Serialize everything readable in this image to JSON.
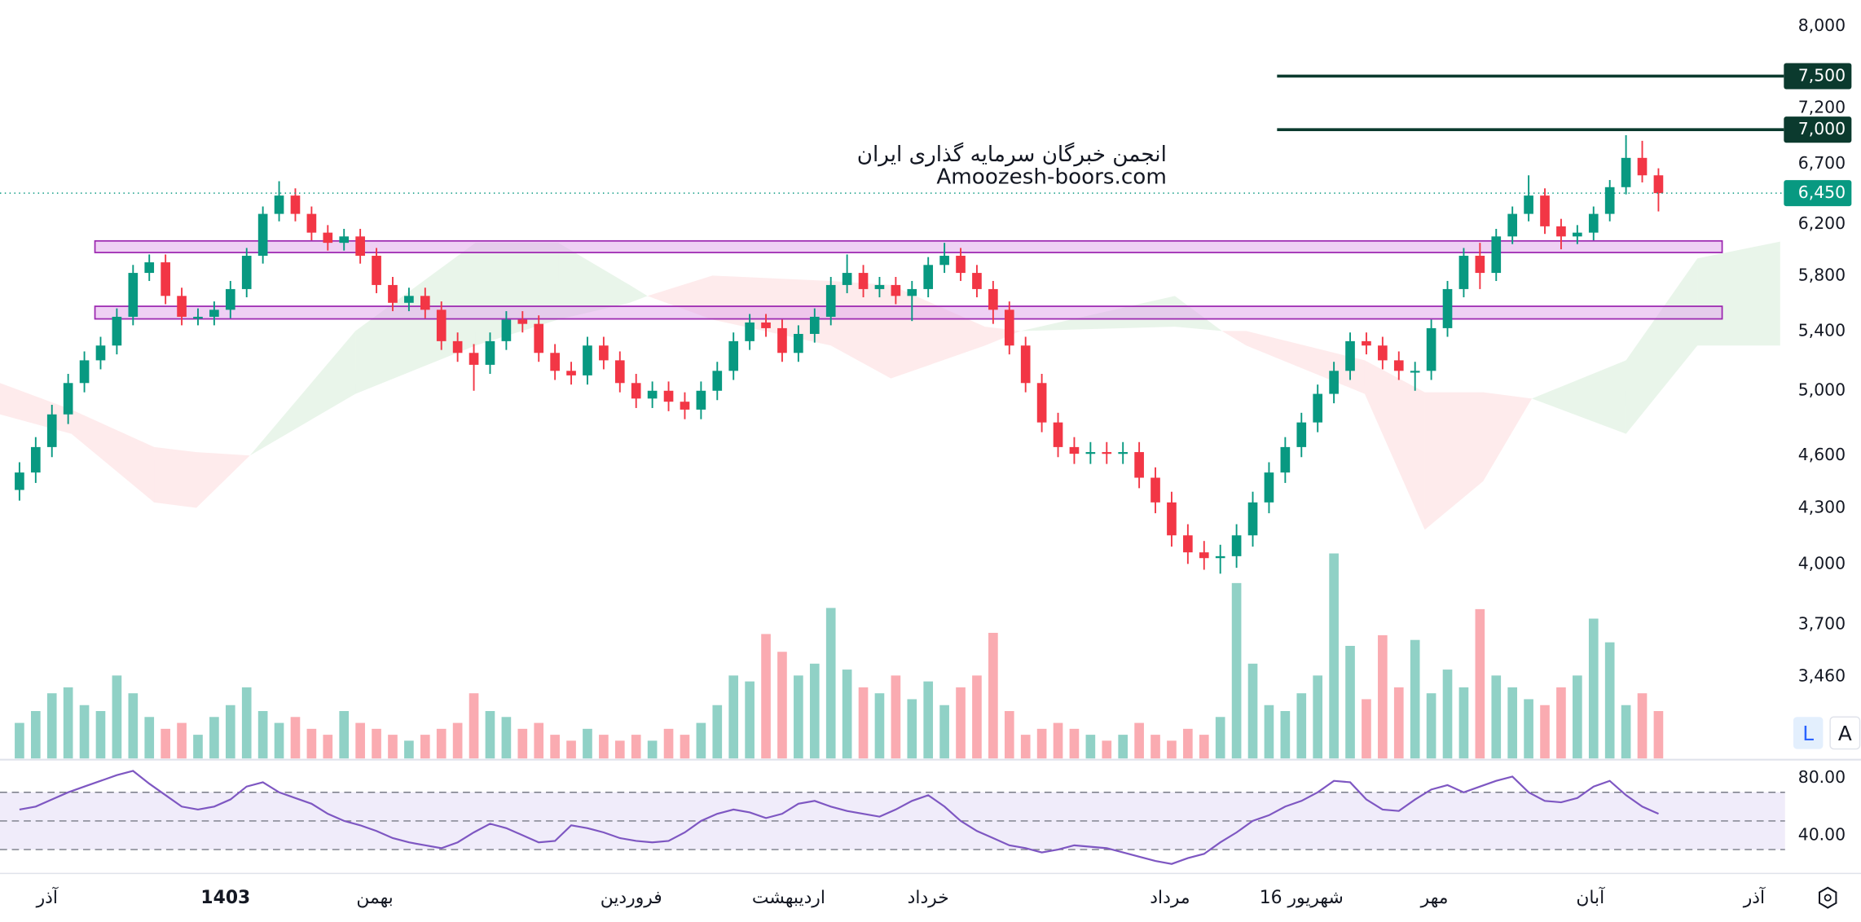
{
  "chart_data": {
    "type": "candlestick",
    "watermark": [
      "انجمن خبرگان سرمایه گذاری ایران",
      "Amoozesh-boors.com"
    ],
    "log_scale": true,
    "ylim": [
      3113,
      8273
    ],
    "yticks": [
      {
        "value": 8000,
        "label": "8,000"
      },
      {
        "value": 7200,
        "label": "7,200"
      },
      {
        "value": 6700,
        "label": "6,700"
      },
      {
        "value": 6200,
        "label": "6,200"
      },
      {
        "value": 5800,
        "label": "5,800"
      },
      {
        "value": 5400,
        "label": "5,400"
      },
      {
        "value": 5000,
        "label": "5,000"
      },
      {
        "value": 4600,
        "label": "4,600"
      },
      {
        "value": 4300,
        "label": "4,300"
      },
      {
        "value": 4000,
        "label": "4,000"
      },
      {
        "value": 3700,
        "label": "3,700"
      },
      {
        "value": 3460,
        "label": "3,460"
      }
    ],
    "xlim": [
      -1.2,
      108.8
    ],
    "xticks": [
      {
        "value": 1.7,
        "label": "آذر"
      },
      {
        "value": 12.7,
        "label": "1403",
        "bold": true
      },
      {
        "value": 21.9,
        "label": "بهمن"
      },
      {
        "value": 37.7,
        "label": "فروردین"
      },
      {
        "value": 47.4,
        "label": "اردیبهشت"
      },
      {
        "value": 56.0,
        "label": "خرداد"
      },
      {
        "value": 70.9,
        "label": "مرداد"
      },
      {
        "value": 79.0,
        "label": "16 شهریور"
      },
      {
        "value": 87.2,
        "label": "مهر"
      },
      {
        "value": 96.8,
        "label": "آبان"
      },
      {
        "value": 106.9,
        "label": "آذر"
      }
    ],
    "up_color": "#089981",
    "down_color": "#f23645",
    "open": [
      4400,
      4500,
      4650,
      4850,
      5050,
      5200,
      5300,
      5500,
      5820,
      5900,
      5650,
      5500,
      5500,
      5550,
      5700,
      5950,
      6280,
      6430,
      6280,
      6130,
      6050,
      6100,
      5950,
      5730,
      5600,
      5650,
      5550,
      5330,
      5250,
      5170,
      5330,
      5480,
      5450,
      5250,
      5130,
      5100,
      5300,
      5200,
      5050,
      4950,
      5000,
      4930,
      4880,
      5000,
      5130,
      5330,
      5460,
      5420,
      5250,
      5380,
      5500,
      5730,
      5820,
      5700,
      5730,
      5650,
      5700,
      5880,
      5950,
      5820,
      5700,
      5550,
      5300,
      5050,
      4800,
      4650,
      4610,
      4620,
      4610,
      4620,
      4470,
      4330,
      4150,
      4060,
      4030,
      4040,
      4150,
      4330,
      4500,
      4650,
      4800,
      4980,
      5130,
      5330,
      5300,
      5200,
      5130,
      5130,
      5420,
      5700,
      5950,
      5820,
      6100,
      6280,
      6430,
      6180,
      6100,
      6130,
      6280,
      6500,
      6750,
      6600
    ],
    "high": [
      4560,
      4710,
      4910,
      5110,
      5260,
      5360,
      5560,
      5880,
      5960,
      5960,
      5710,
      5560,
      5610,
      5760,
      6010,
      6340,
      6550,
      6490,
      6340,
      6190,
      6160,
      6160,
      6010,
      5790,
      5710,
      5710,
      5610,
      5390,
      5310,
      5390,
      5540,
      5540,
      5510,
      5310,
      5190,
      5360,
      5360,
      5260,
      5110,
      5060,
      5060,
      4990,
      5060,
      5190,
      5390,
      5520,
      5520,
      5480,
      5440,
      5560,
      5790,
      5960,
      5880,
      5790,
      5790,
      5760,
      5940,
      6050,
      6010,
      5880,
      5760,
      5610,
      5360,
      5110,
      4860,
      4710,
      4680,
      4680,
      4680,
      4680,
      4530,
      4390,
      4210,
      4120,
      4100,
      4210,
      4390,
      4560,
      4710,
      4860,
      5040,
      5190,
      5390,
      5390,
      5360,
      5260,
      5190,
      5480,
      5760,
      6010,
      6050,
      6160,
      6340,
      6600,
      6490,
      6240,
      6190,
      6340,
      6560,
      6950,
      6900,
      6660
    ],
    "low": [
      4340,
      4440,
      4590,
      4790,
      4990,
      5140,
      5240,
      5440,
      5760,
      5590,
      5440,
      5440,
      5440,
      5490,
      5640,
      5890,
      6220,
      6220,
      6070,
      5990,
      5990,
      5890,
      5670,
      5540,
      5540,
      5490,
      5270,
      5190,
      5000,
      5110,
      5270,
      5390,
      5190,
      5070,
      5040,
      5040,
      5140,
      4990,
      4890,
      4890,
      4870,
      4820,
      4820,
      4940,
      5070,
      5270,
      5360,
      5190,
      5190,
      5320,
      5440,
      5670,
      5640,
      5640,
      5590,
      5470,
      5640,
      5820,
      5760,
      5640,
      5450,
      5240,
      4990,
      4740,
      4590,
      4550,
      4550,
      4550,
      4550,
      4410,
      4270,
      4090,
      4000,
      3970,
      3950,
      3980,
      4090,
      4270,
      4440,
      4590,
      4740,
      4920,
      5070,
      5240,
      5140,
      5070,
      5000,
      5070,
      5360,
      5640,
      5700,
      5760,
      6040,
      6220,
      6120,
      6000,
      6040,
      6070,
      6220,
      6440,
      6540,
      6300
    ],
    "close": [
      4500,
      4650,
      4850,
      5050,
      5200,
      5300,
      5500,
      5820,
      5900,
      5650,
      5500,
      5500,
      5550,
      5700,
      5950,
      6280,
      6430,
      6280,
      6130,
      6050,
      6100,
      5950,
      5730,
      5600,
      5650,
      5550,
      5330,
      5250,
      5170,
      5330,
      5480,
      5450,
      5250,
      5130,
      5100,
      5300,
      5200,
      5050,
      4950,
      5000,
      4930,
      4880,
      5000,
      5130,
      5330,
      5460,
      5420,
      5250,
      5380,
      5500,
      5730,
      5820,
      5700,
      5730,
      5650,
      5700,
      5880,
      5950,
      5820,
      5700,
      5550,
      5300,
      5050,
      4800,
      4650,
      4610,
      4620,
      4610,
      4620,
      4470,
      4330,
      4150,
      4060,
      4030,
      4040,
      4150,
      4330,
      4500,
      4650,
      4800,
      4980,
      5130,
      5330,
      5300,
      5200,
      5130,
      5130,
      5420,
      5700,
      5950,
      5820,
      6100,
      6280,
      6430,
      6180,
      6100,
      6130,
      6280,
      6500,
      6750,
      6600,
      6450
    ],
    "volume": [
      30,
      40,
      55,
      60,
      45,
      40,
      70,
      55,
      35,
      25,
      30,
      20,
      35,
      45,
      60,
      40,
      30,
      35,
      25,
      20,
      40,
      30,
      25,
      20,
      15,
      20,
      25,
      30,
      55,
      40,
      35,
      25,
      30,
      20,
      15,
      25,
      20,
      15,
      20,
      15,
      25,
      20,
      30,
      45,
      70,
      65,
      105,
      90,
      70,
      80,
      127,
      75,
      60,
      55,
      70,
      50,
      65,
      45,
      60,
      70,
      106,
      40,
      20,
      25,
      30,
      25,
      20,
      15,
      20,
      30,
      20,
      15,
      25,
      20,
      35,
      148,
      80,
      45,
      40,
      55,
      70,
      173,
      95,
      50,
      104,
      60,
      100,
      55,
      75,
      60,
      126,
      70,
      60,
      50,
      45,
      60,
      70,
      118,
      98,
      45,
      55,
      40
    ],
    "last_price": {
      "value": 6450,
      "label": "6,450"
    },
    "levels": [
      {
        "value": 7500,
        "label": "7,500"
      },
      {
        "value": 7000,
        "label": "7,000"
      }
    ],
    "zones": [
      {
        "low": 5975,
        "high": 6065
      },
      {
        "low": 5485,
        "high": 5575
      }
    ],
    "cloud": {
      "x": [
        -1.2,
        3.2,
        8.3,
        10.9,
        14.2,
        20.7,
        28.1,
        33.2,
        37.6,
        38.7,
        42.7,
        50.0,
        53.7,
        59.5,
        61.7,
        71.2,
        74.1,
        75.6,
        82.9,
        86.6,
        90.2,
        93.2,
        99.0,
        103.4,
        108.5
      ],
      "span_a": [
        4850,
        4730,
        4330,
        4300,
        4600,
        5400,
        6050,
        6050,
        5730,
        5650,
        5480,
        5300,
        5080,
        5300,
        5400,
        5650,
        5400,
        5300,
        4980,
        4180,
        4450,
        4950,
        5200,
        5930,
        6060
      ],
      "span_b": [
        5050,
        4880,
        4650,
        4620,
        4600,
        4980,
        5300,
        5480,
        5600,
        5650,
        5800,
        5760,
        5730,
        5430,
        5400,
        5430,
        5400,
        5400,
        5200,
        4990,
        4990,
        4950,
        4730,
        5300,
        5300
      ]
    },
    "rsi": {
      "values": [
        58,
        60,
        65,
        70,
        74,
        78,
        82,
        85,
        76,
        68,
        60,
        58,
        60,
        65,
        74,
        77,
        70,
        66,
        62,
        55,
        50,
        47,
        43,
        38,
        35,
        33,
        31,
        35,
        42,
        48,
        45,
        40,
        35,
        36,
        47,
        45,
        42,
        38,
        36,
        35,
        36,
        42,
        50,
        55,
        58,
        56,
        52,
        55,
        62,
        64,
        60,
        57,
        55,
        53,
        58,
        64,
        68,
        60,
        50,
        43,
        38,
        33,
        31,
        28,
        30,
        33,
        32,
        31,
        28,
        25,
        22,
        20,
        24,
        27,
        35,
        42,
        50,
        54,
        60,
        64,
        70,
        78,
        77,
        65,
        58,
        57,
        65,
        72,
        75,
        70,
        74,
        78,
        81,
        70,
        64,
        63,
        66,
        74,
        78,
        68,
        60,
        55
      ],
      "ylim": [
        15,
        92
      ],
      "yticks": [
        {
          "value": 80,
          "label": "80.00"
        },
        {
          "value": 40,
          "label": "40.00"
        }
      ],
      "band": [
        30,
        70
      ],
      "mid": 50,
      "color": "#7e57c2"
    },
    "scale_buttons": [
      "L",
      "A"
    ]
  }
}
